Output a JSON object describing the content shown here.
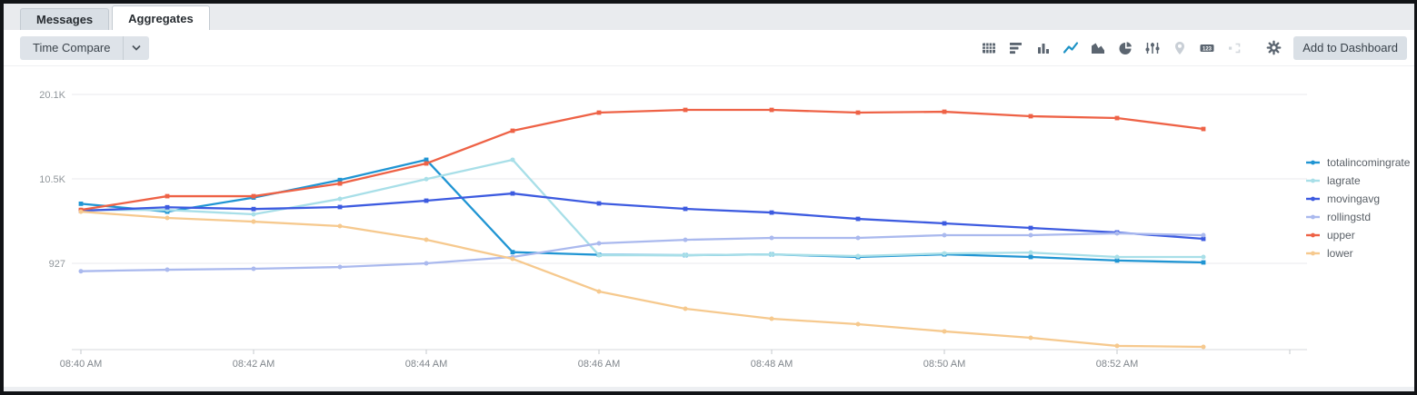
{
  "tabs": [
    {
      "label": "Messages",
      "active": false
    },
    {
      "label": "Aggregates",
      "active": true
    }
  ],
  "toolbar": {
    "time_compare_label": "Time Compare",
    "add_to_dashboard_label": "Add to Dashboard",
    "single_value_text": "123",
    "active_color": "#1e93c6",
    "icon_color": "#5b6570",
    "disabled_color": "#c9cfd6",
    "icons": [
      {
        "name": "table-icon",
        "state": "normal"
      },
      {
        "name": "bar-chart-icon",
        "state": "normal"
      },
      {
        "name": "column-chart-icon",
        "state": "normal"
      },
      {
        "name": "line-chart-icon",
        "state": "active"
      },
      {
        "name": "area-chart-icon",
        "state": "normal"
      },
      {
        "name": "pie-chart-icon",
        "state": "normal"
      },
      {
        "name": "scatter-chart-icon",
        "state": "normal"
      },
      {
        "name": "map-pin-icon",
        "state": "disabled"
      },
      {
        "name": "single-value-icon",
        "state": "normal"
      },
      {
        "name": "cluster-chart-icon",
        "state": "disabled"
      },
      {
        "name": "gear-icon",
        "state": "normal"
      }
    ]
  },
  "chart_data": {
    "type": "line",
    "title": "",
    "xlabel": "",
    "ylabel": "",
    "grid": "horizontal",
    "legend_position": "right",
    "x": [
      "08:40",
      "08:41",
      "08:42",
      "08:43",
      "08:44",
      "08:45",
      "08:46",
      "08:47",
      "08:48",
      "08:49",
      "08:50",
      "08:51",
      "08:52",
      "08:53"
    ],
    "x_tick_labels": [
      "08:40 AM",
      "08:42 AM",
      "08:44 AM",
      "08:46 AM",
      "08:48 AM",
      "08:50 AM",
      "08:52 AM"
    ],
    "y_ticks": [
      927,
      10527,
      20127
    ],
    "y_tick_labels": [
      "927",
      "10.5K",
      "20.1K"
    ],
    "ylim": [
      -8900,
      21800
    ],
    "series": [
      {
        "name": "totalincomingrate",
        "color": "#2095d3",
        "marker": "square",
        "values": [
          7700,
          6800,
          8400,
          10400,
          12700,
          2200,
          1900,
          1850,
          1950,
          1650,
          1950,
          1650,
          1250,
          1030
        ]
      },
      {
        "name": "lagrate",
        "color": "#a8dfe8",
        "marker": "round",
        "values": [
          7000,
          7000,
          6500,
          8250,
          10500,
          12700,
          1850,
          1850,
          1950,
          1750,
          2050,
          2150,
          1650,
          1650
        ]
      },
      {
        "name": "movingavg",
        "color": "#3d5be0",
        "marker": "square",
        "values": [
          6900,
          7300,
          7100,
          7330,
          8050,
          8870,
          7740,
          7120,
          6700,
          5980,
          5470,
          4950,
          4440,
          3710
        ]
      },
      {
        "name": "rollingstd",
        "color": "#aab9ee",
        "marker": "round",
        "values": [
          30,
          200,
          310,
          510,
          930,
          1650,
          3200,
          3600,
          3820,
          3820,
          4130,
          4130,
          4330,
          4130
        ]
      },
      {
        "name": "upper",
        "color": "#ee6246",
        "marker": "square",
        "values": [
          7000,
          8560,
          8560,
          10000,
          12280,
          16000,
          18060,
          18370,
          18370,
          18060,
          18160,
          17650,
          17440,
          16200
        ]
      },
      {
        "name": "lower",
        "color": "#f6c98e",
        "marker": "round",
        "values": [
          6800,
          6090,
          5670,
          5160,
          3610,
          1440,
          -2270,
          -4230,
          -5370,
          -5990,
          -6810,
          -7540,
          -8460,
          -8570
        ]
      }
    ]
  }
}
